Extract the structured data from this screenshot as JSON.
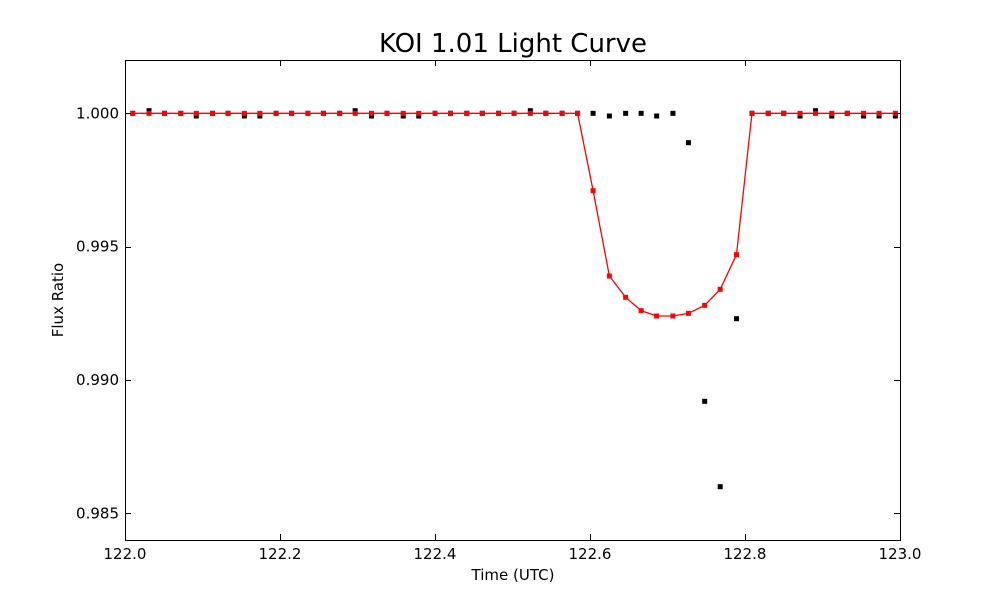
{
  "chart_data": {
    "type": "scatter",
    "title": "KOI 1.01 Light Curve",
    "xlabel": "Time (UTC)",
    "ylabel": "Flux Ratio",
    "xlim": [
      122.0,
      123.0
    ],
    "ylim": [
      0.984,
      1.002
    ],
    "xticks": [
      122.0,
      122.2,
      122.4,
      122.6,
      122.8,
      123.0
    ],
    "xtick_labels": [
      "122.0",
      "122.2",
      "122.4",
      "122.6",
      "122.8",
      "123.0"
    ],
    "yticks": [
      0.985,
      0.99,
      0.995,
      1.0
    ],
    "ytick_labels": [
      "0.985",
      "0.990",
      "0.995",
      "1.000"
    ],
    "grid": false,
    "colors": {
      "observed": "#000000",
      "model": "#ff0000"
    },
    "series": [
      {
        "style": "black-square-markers",
        "x": [
          122.01,
          122.031,
          122.051,
          122.072,
          122.092,
          122.113,
          122.133,
          122.154,
          122.174,
          122.195,
          122.215,
          122.236,
          122.256,
          122.277,
          122.297,
          122.318,
          122.338,
          122.359,
          122.379,
          122.4,
          122.42,
          122.441,
          122.461,
          122.482,
          122.502,
          122.523,
          122.543,
          122.564,
          122.584,
          122.604,
          122.625,
          122.646,
          122.666,
          122.686,
          122.707,
          122.727,
          122.748,
          122.768,
          122.789,
          122.809,
          122.83,
          122.85,
          122.871,
          122.891,
          122.912,
          122.932,
          122.953,
          122.973,
          122.994
        ],
        "y": [
          1.0,
          1.0001,
          1.0,
          1.0,
          0.9999,
          1.0,
          1.0,
          0.9999,
          0.9999,
          1.0,
          1.0,
          1.0,
          1.0,
          1.0,
          1.0001,
          0.9999,
          1.0,
          0.9999,
          0.9999,
          1.0,
          1.0,
          1.0,
          1.0,
          1.0,
          1.0,
          1.0001,
          1.0,
          1.0,
          1.0,
          1.0,
          0.9999,
          1.0,
          1.0,
          0.9999,
          1.0,
          0.9989,
          0.9892,
          0.986,
          0.9923,
          1.0,
          1.0,
          1.0,
          0.9999,
          1.0001,
          0.9999,
          1.0,
          0.9999,
          0.9999,
          0.9999
        ]
      },
      {
        "style": "red-line-with-square-markers",
        "x": [
          122.01,
          122.031,
          122.051,
          122.072,
          122.092,
          122.113,
          122.133,
          122.154,
          122.174,
          122.195,
          122.215,
          122.236,
          122.256,
          122.277,
          122.297,
          122.318,
          122.338,
          122.359,
          122.379,
          122.4,
          122.42,
          122.441,
          122.461,
          122.482,
          122.502,
          122.523,
          122.543,
          122.564,
          122.584,
          122.604,
          122.625,
          122.646,
          122.666,
          122.686,
          122.707,
          122.727,
          122.748,
          122.768,
          122.789,
          122.809,
          122.83,
          122.85,
          122.871,
          122.891,
          122.912,
          122.932,
          122.953,
          122.973,
          122.994
        ],
        "y": [
          1.0,
          1.0,
          1.0,
          1.0,
          1.0,
          1.0,
          1.0,
          1.0,
          1.0,
          1.0,
          1.0,
          1.0,
          1.0,
          1.0,
          1.0,
          1.0,
          1.0,
          1.0,
          1.0,
          1.0,
          1.0,
          1.0,
          1.0,
          1.0,
          1.0,
          1.0,
          1.0,
          1.0,
          1.0,
          0.9971,
          0.9939,
          0.9931,
          0.9926,
          0.9924,
          0.9924,
          0.9925,
          0.9928,
          0.9934,
          0.9947,
          1.0,
          1.0,
          1.0,
          1.0,
          1.0,
          1.0,
          1.0,
          1.0,
          1.0,
          1.0
        ]
      }
    ]
  }
}
